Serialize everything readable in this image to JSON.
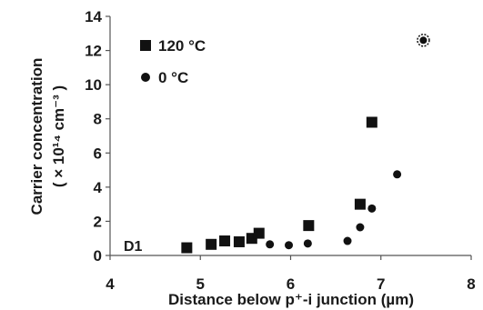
{
  "chart_data": {
    "type": "scatter",
    "title": "",
    "xlabel": "Distance below p⁺-i junction (µm)",
    "ylabel_line1": "Carrier concentration",
    "ylabel_line2": "( × 10¹⁴ cm⁻³ )",
    "xlim": [
      4,
      8
    ],
    "ylim": [
      0,
      14
    ],
    "xticks": [
      4,
      5,
      6,
      7,
      8
    ],
    "yticks": [
      0,
      2,
      4,
      6,
      8,
      10,
      12,
      14
    ],
    "grid": false,
    "legend_position": "top-left",
    "panel_label": "D1",
    "series": [
      {
        "name": "120 °C",
        "marker": "square",
        "color": "#111111",
        "points": [
          {
            "x": 4.85,
            "y": 0.45
          },
          {
            "x": 5.12,
            "y": 0.65
          },
          {
            "x": 5.27,
            "y": 0.85
          },
          {
            "x": 5.43,
            "y": 0.8
          },
          {
            "x": 5.57,
            "y": 1.0
          },
          {
            "x": 5.65,
            "y": 1.3
          },
          {
            "x": 6.2,
            "y": 1.75
          },
          {
            "x": 6.77,
            "y": 3.0
          },
          {
            "x": 6.9,
            "y": 7.8
          }
        ]
      },
      {
        "name": "0 °C",
        "marker": "circle",
        "color": "#111111",
        "points": [
          {
            "x": 5.77,
            "y": 0.65
          },
          {
            "x": 5.98,
            "y": 0.6
          },
          {
            "x": 6.19,
            "y": 0.7
          },
          {
            "x": 6.63,
            "y": 0.85
          },
          {
            "x": 6.77,
            "y": 1.65
          },
          {
            "x": 6.9,
            "y": 2.75
          },
          {
            "x": 7.18,
            "y": 4.75
          }
        ]
      }
    ],
    "annotation_marker": {
      "x": 7.47,
      "y": 12.6,
      "symbol": "circled-dot"
    }
  }
}
